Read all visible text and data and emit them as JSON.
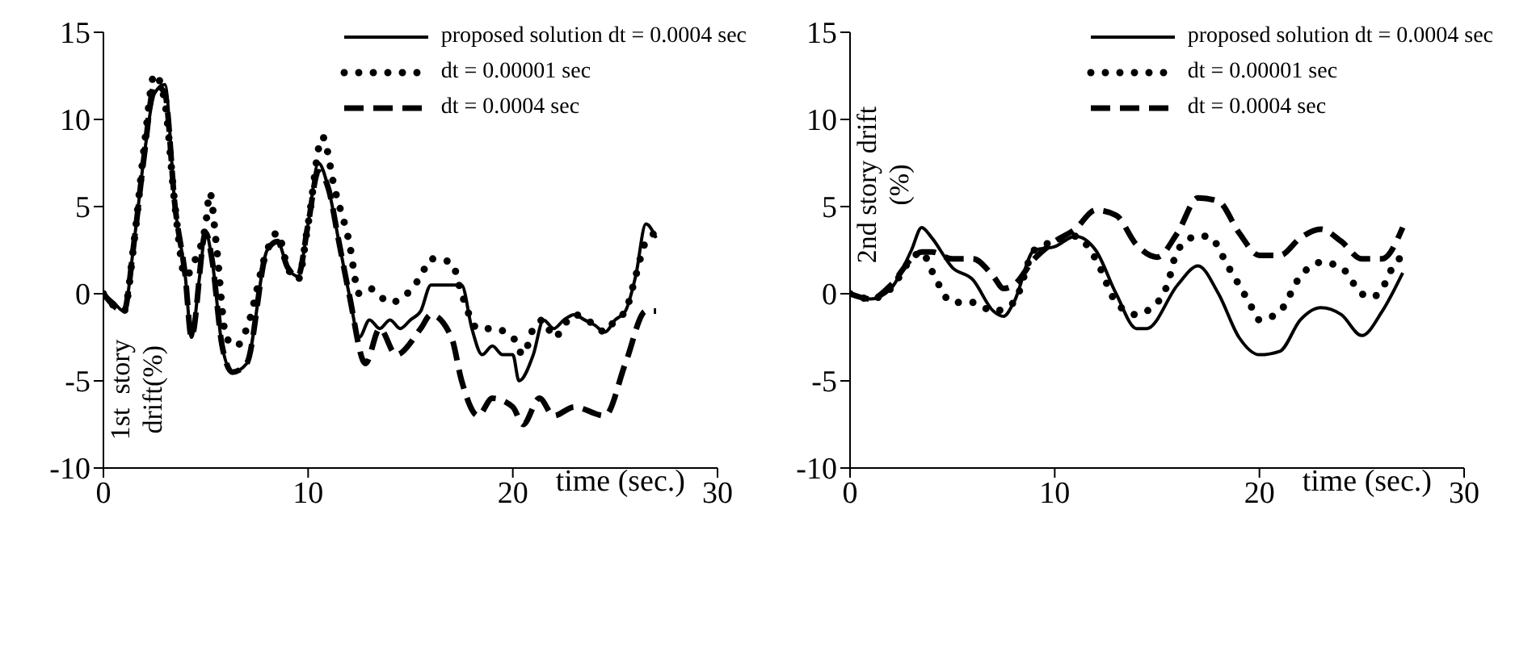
{
  "chart_data": [
    {
      "type": "line",
      "ylabel": "1st  story drift(%)",
      "xlabel": "time (sec.)",
      "xlim": [
        0,
        30
      ],
      "xticks": [
        0,
        10,
        20,
        30
      ],
      "ylim": [
        -10,
        15
      ],
      "yticks": [
        -10,
        -5,
        0,
        5,
        10,
        15
      ],
      "legend": "top right",
      "series": [
        {
          "name": "proposed solution dt = 0.0004 sec",
          "color": "#000000",
          "line_style": "solid",
          "x": [
            0,
            0.5,
            1,
            1.5,
            2,
            2.5,
            3,
            3.5,
            4,
            4.3,
            4.7,
            5,
            5.3,
            5.8,
            6.3,
            7,
            8,
            8.5,
            9,
            9.5,
            10,
            10.5,
            11,
            11.5,
            12,
            12.5,
            13,
            13.5,
            14,
            14.5,
            15,
            15.5,
            16,
            17,
            17.5,
            18,
            18.5,
            19,
            19.5,
            20,
            20.3,
            21,
            21.5,
            22,
            22.5,
            23,
            23.5,
            24,
            24.5,
            25,
            25.5,
            26,
            26.5,
            27
          ],
          "values": [
            0,
            -0.5,
            -1,
            3,
            8,
            11.5,
            12,
            5,
            1,
            -2.5,
            1,
            3.5,
            2,
            -3,
            -4.5,
            -4,
            2.5,
            3,
            1.5,
            1,
            4,
            7.5,
            6,
            3,
            0,
            -2.5,
            -1.5,
            -2,
            -1.5,
            -2,
            -1.5,
            -1,
            0.5,
            0.5,
            0.5,
            -2,
            -3.5,
            -3,
            -3.5,
            -3.5,
            -5,
            -3.5,
            -1.5,
            -2,
            -1.5,
            -1.2,
            -1.5,
            -1.8,
            -2.2,
            -1.5,
            -1,
            1,
            4,
            3.2
          ]
        },
        {
          "name": "dt =  0.00001 sec",
          "color": "#000000",
          "line_style": "dotted",
          "x": [
            0,
            1,
            1.5,
            2,
            2.5,
            3,
            3.5,
            4,
            4.5,
            5,
            5.2,
            5.5,
            6,
            6.5,
            7,
            8,
            8.5,
            9,
            9.5,
            10,
            10.7,
            11.3,
            12,
            12.5,
            13,
            14,
            15,
            15.5,
            16,
            17,
            17.5,
            18.3,
            19,
            20,
            20.5,
            21,
            21.5,
            22,
            23,
            24,
            24.5,
            25,
            25.5,
            26,
            26.5,
            27
          ],
          "values": [
            0,
            -1,
            3,
            8.5,
            12.6,
            11,
            5,
            1,
            2,
            4,
            5.8,
            3,
            -2.5,
            -3,
            -2,
            2.5,
            3.5,
            1.5,
            0.8,
            4,
            9,
            6,
            3,
            0,
            0.3,
            -0.5,
            0.2,
            1,
            2,
            1.8,
            0,
            -2,
            -2,
            -2.5,
            -3.5,
            -2,
            -1.5,
            -2.5,
            -1.2,
            -1.8,
            -2.2,
            -1.5,
            -1,
            1,
            3,
            3.5
          ]
        },
        {
          "name": "dt = 0.0004 sec",
          "color": "#000000",
          "line_style": "dashed",
          "x": [
            0,
            1,
            1.5,
            2,
            2.5,
            3,
            3.5,
            4,
            4.3,
            5,
            5.3,
            5.8,
            6.3,
            7,
            8,
            8.5,
            9,
            9.5,
            10,
            10.5,
            11,
            11.5,
            12,
            12.8,
            13.5,
            14.3,
            15.5,
            16,
            17,
            17.5,
            18.3,
            19,
            20,
            20.5,
            21.3,
            22,
            23,
            24.5,
            25.5,
            26.5,
            27
          ],
          "values": [
            0,
            -1,
            3,
            8,
            12,
            11.5,
            5,
            1,
            -2.5,
            3.5,
            2,
            -3,
            -4.5,
            -4,
            2.5,
            3,
            1.5,
            1,
            4,
            7,
            6,
            3,
            0,
            -4,
            -2,
            -3.5,
            -2,
            -1.2,
            -2.5,
            -5,
            -7,
            -6,
            -6.5,
            -7.5,
            -6,
            -7,
            -6.5,
            -7,
            -4,
            -1,
            -1
          ]
        }
      ]
    },
    {
      "type": "line",
      "ylabel": "2nd story drift (%)",
      "xlabel": "time (sec.)",
      "xlim": [
        0,
        30
      ],
      "xticks": [
        0,
        10,
        20,
        30
      ],
      "ylim": [
        -10,
        15
      ],
      "yticks": [
        -10,
        -5,
        0,
        5,
        10,
        15
      ],
      "legend": "top right",
      "series": [
        {
          "name": "proposed solution dt = 0.0004 sec",
          "color": "#000000",
          "line_style": "solid",
          "x": [
            0,
            1,
            2,
            3,
            3.5,
            4,
            5,
            6,
            7,
            7.5,
            8,
            9,
            10,
            11,
            12,
            13,
            14,
            14.5,
            16,
            17,
            18,
            19,
            20,
            21,
            22,
            23,
            24,
            25,
            26,
            27
          ],
          "values": [
            0,
            -0.3,
            0.3,
            2.5,
            3.8,
            3.2,
            1.5,
            0.8,
            -1,
            -1.3,
            -0.5,
            2.5,
            2.7,
            3.3,
            2.5,
            0,
            -2,
            -2,
            0.5,
            1.6,
            0,
            -2.5,
            -3.5,
            -3.3,
            -1.5,
            -0.8,
            -1.2,
            -2.4,
            -1,
            1.2
          ]
        },
        {
          "name": "dt = 0.00001 sec",
          "color": "#000000",
          "line_style": "dotted",
          "x": [
            0,
            1,
            2,
            3,
            3.5,
            4,
            5,
            6,
            7,
            8,
            9,
            10,
            11,
            12,
            13,
            14,
            14.5,
            15.5,
            16,
            17,
            17.5,
            18.5,
            19.5,
            20,
            21,
            22,
            23,
            24,
            25,
            25.5,
            26,
            26.5,
            27
          ],
          "values": [
            0,
            -0.3,
            0.3,
            2,
            2.4,
            1.3,
            -0.5,
            -0.5,
            -1,
            -0.5,
            2.5,
            3,
            3.3,
            2,
            -0.5,
            -1.2,
            -1,
            0.5,
            2.5,
            3.3,
            3.3,
            1.5,
            -0.5,
            -1.5,
            -1,
            1,
            1.8,
            1.5,
            0,
            -0.2,
            0.3,
            1.5,
            2.2
          ]
        },
        {
          "name": "dt = 0.0004 sec",
          "color": "#000000",
          "line_style": "dashed",
          "x": [
            0,
            1,
            2,
            3,
            3.5,
            4,
            5,
            6,
            7,
            7.5,
            8,
            9,
            10,
            11,
            12,
            13,
            14,
            15,
            16,
            17,
            18,
            19,
            20,
            21,
            22,
            23,
            24,
            25,
            26,
            27
          ],
          "values": [
            0,
            -0.3,
            0.5,
            2,
            2.4,
            2.4,
            2,
            2,
            1,
            0.3,
            0.5,
            2,
            3,
            3.7,
            4.8,
            4.5,
            2.8,
            2.1,
            3.5,
            5.5,
            5.3,
            3.5,
            2.2,
            2.2,
            3.2,
            3.7,
            3,
            2,
            2,
            3.8
          ]
        }
      ]
    }
  ]
}
